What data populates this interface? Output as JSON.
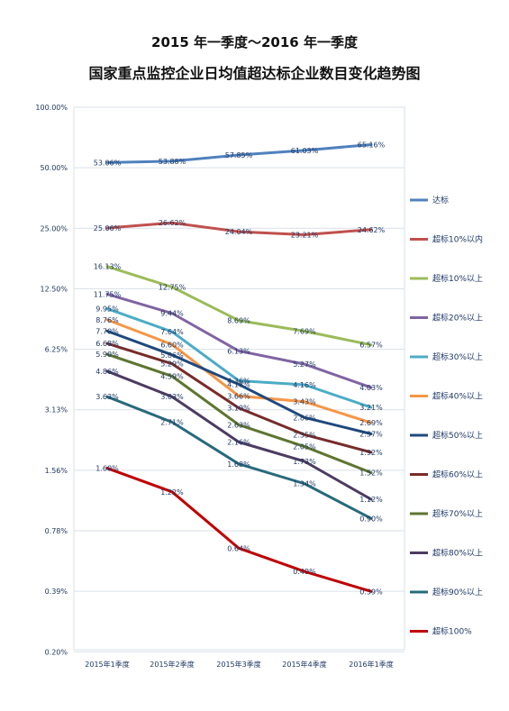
{
  "title_line1": "2015 年一季度～2016 年一季度",
  "title_line2": "国家重点监控企业日均值超达标企业数目变化趋势图",
  "chart_data": {
    "type": "line",
    "y_scale": "log2",
    "ylim": [
      0.2,
      100
    ],
    "y_ticks": [
      "100.00%",
      "50.00%",
      "25.00%",
      "12.50%",
      "6.25%",
      "3.13%",
      "1.56%",
      "0.78%",
      "0.39%",
      "0.20%"
    ],
    "y_tick_values": [
      100,
      50,
      25,
      12.5,
      6.25,
      3.125,
      1.5625,
      0.78125,
      0.390625,
      0.1953125
    ],
    "categories": [
      "2015年1季度",
      "2015年2季度",
      "2015年3季度",
      "2015年4季度",
      "2016年1季度"
    ],
    "grid": "horizontal",
    "legend_position": "right",
    "series": [
      {
        "name": "达标",
        "color": "#4f81bd",
        "values": [
          53.06,
          53.88,
          57.85,
          61.03,
          65.16
        ],
        "labels": [
          "53.06%",
          "53.88%",
          "57.85%",
          "61.03%",
          "65.16%"
        ]
      },
      {
        "name": "超标10%以内",
        "color": "#c0504d",
        "values": [
          25.06,
          26.62,
          24.04,
          23.21,
          24.62
        ],
        "labels": [
          "25.06%",
          "26.62%",
          "24.04%",
          "23.21%",
          "24.62%"
        ]
      },
      {
        "name": "超标10%以上",
        "color": "#9bbb59",
        "values": [
          16.13,
          12.75,
          8.69,
          7.69,
          6.57
        ],
        "labels": [
          "16.13%",
          "12.75%",
          "8.69%",
          "7.69%",
          "6.57%"
        ]
      },
      {
        "name": "超标20%以上",
        "color": "#8064a2",
        "values": [
          11.75,
          9.44,
          6.13,
          5.27,
          4.03
        ],
        "labels": [
          "11.75%",
          "9.44%",
          "6.13%",
          "5.27%",
          "4.03%"
        ]
      },
      {
        "name": "超标30%以上",
        "color": "#4bacc6",
        "values": [
          9.95,
          7.64,
          4.36,
          4.16,
          3.21
        ],
        "labels": [
          "9.95%",
          "7.64%",
          "4.36%",
          "4.16%",
          "3.21%"
        ]
      },
      {
        "name": "超标40%以上",
        "color": "#f79646",
        "values": [
          8.76,
          6.6,
          3.66,
          3.43,
          2.69
        ],
        "labels": [
          "8.76%",
          "6.60%",
          "3.66%",
          "3.43%",
          "2.69%"
        ]
      },
      {
        "name": "超标50%以上",
        "color": "#1f497d",
        "values": [
          7.7,
          5.86,
          4.18,
          2.86,
          2.37
        ],
        "labels": [
          "7.70%",
          "5.86%",
          "4.18%",
          "2.86%",
          "2.37%"
        ]
      },
      {
        "name": "超标60%以上",
        "color": "#772c2a",
        "values": [
          6.68,
          5.29,
          3.19,
          2.35,
          1.92
        ],
        "labels": [
          "6.68%",
          "5.29%",
          "3.19%",
          "2.35%",
          "1.92%"
        ]
      },
      {
        "name": "超标70%以上",
        "color": "#5f7530",
        "values": [
          5.9,
          4.59,
          2.63,
          2.05,
          1.52
        ],
        "labels": [
          "5.90%",
          "4.59%",
          "2.63%",
          "2.05%",
          "1.52%"
        ]
      },
      {
        "name": "超标80%以上",
        "color": "#4d3b62",
        "values": [
          4.86,
          3.63,
          2.16,
          1.73,
          1.12
        ],
        "labels": [
          "4.86%",
          "3.63%",
          "2.16%",
          "1.73%",
          "1.12%"
        ]
      },
      {
        "name": "超标90%以上",
        "color": "#276a7c",
        "values": [
          3.63,
          2.71,
          1.68,
          1.34,
          0.9
        ],
        "labels": [
          "3.63%",
          "2.71%",
          "1.68%",
          "1.34%",
          "0.90%"
        ]
      },
      {
        "name": "超标100%",
        "color": "#c00000",
        "values": [
          1.6,
          1.22,
          0.64,
          0.49,
          0.39
        ],
        "labels": [
          "1.60%",
          "1.22%",
          "0.64%",
          "0.49%",
          "0.39%"
        ]
      }
    ]
  }
}
